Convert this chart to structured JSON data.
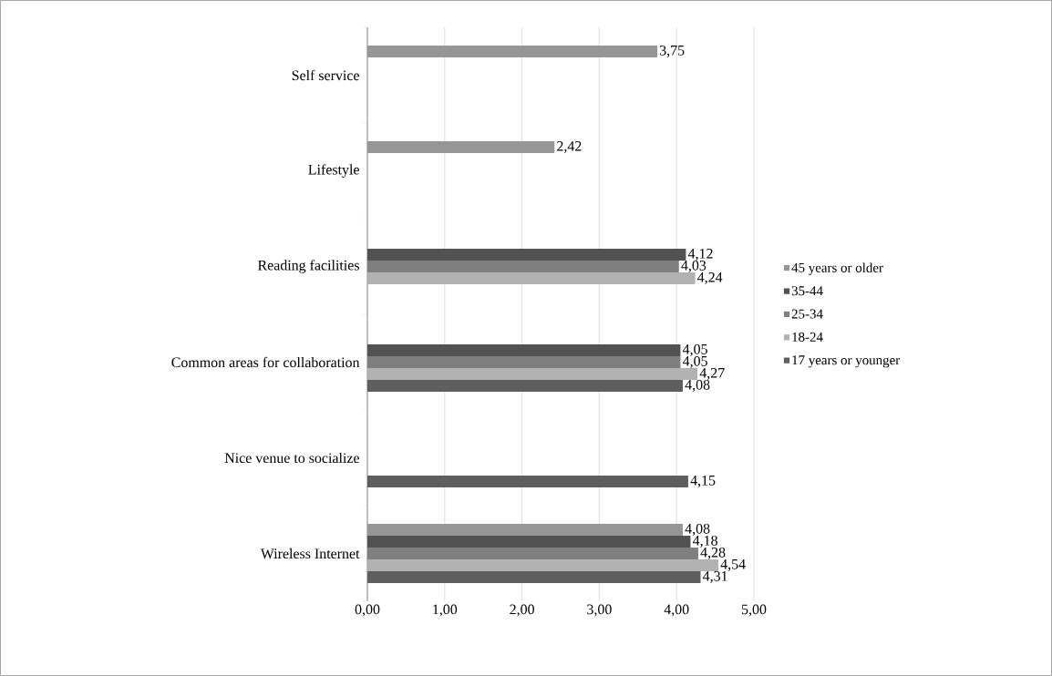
{
  "chart_data": {
    "type": "bar",
    "orientation": "horizontal",
    "categories": [
      "Self service",
      "Lifestyle",
      "Reading facilities",
      "Common areas for collaboration",
      "Nice venue to socialize",
      "Wireless Internet"
    ],
    "series": [
      {
        "name": "45 years or older",
        "color": "#969696",
        "values": [
          3.75,
          2.42,
          null,
          null,
          null,
          4.08
        ],
        "value_labels": [
          "3,75",
          "2,42",
          null,
          null,
          null,
          "4,08"
        ]
      },
      {
        "name": "35-44",
        "color": "#525252",
        "values": [
          null,
          null,
          4.12,
          4.05,
          null,
          4.18
        ],
        "value_labels": [
          null,
          null,
          "4,12",
          "4,05",
          null,
          "4,18"
        ]
      },
      {
        "name": "25-34",
        "color": "#7f7f7f",
        "values": [
          null,
          null,
          4.03,
          4.05,
          null,
          4.28
        ],
        "value_labels": [
          null,
          null,
          "4,03",
          "4,05",
          null,
          "4,28"
        ]
      },
      {
        "name": "18-24",
        "color": "#b2b2b2",
        "values": [
          null,
          null,
          4.24,
          4.27,
          null,
          4.54
        ],
        "value_labels": [
          null,
          null,
          "4,24",
          "4,27",
          null,
          "4,54"
        ]
      },
      {
        "name": "17 years or younger",
        "color": "#5e5e5e",
        "values": [
          null,
          null,
          null,
          4.08,
          4.15,
          4.31
        ],
        "value_labels": [
          null,
          null,
          null,
          "4,08",
          "4,15",
          "4,31"
        ]
      }
    ],
    "xlim": [
      0,
      5
    ],
    "xticks": [
      {
        "value": 0,
        "label": "0,00"
      },
      {
        "value": 1,
        "label": "1,00"
      },
      {
        "value": 2,
        "label": "2,00"
      },
      {
        "value": 3,
        "label": "3,00"
      },
      {
        "value": 4,
        "label": "4,00"
      },
      {
        "value": 5,
        "label": "5,00"
      }
    ],
    "grid": "x",
    "legend": "right"
  }
}
